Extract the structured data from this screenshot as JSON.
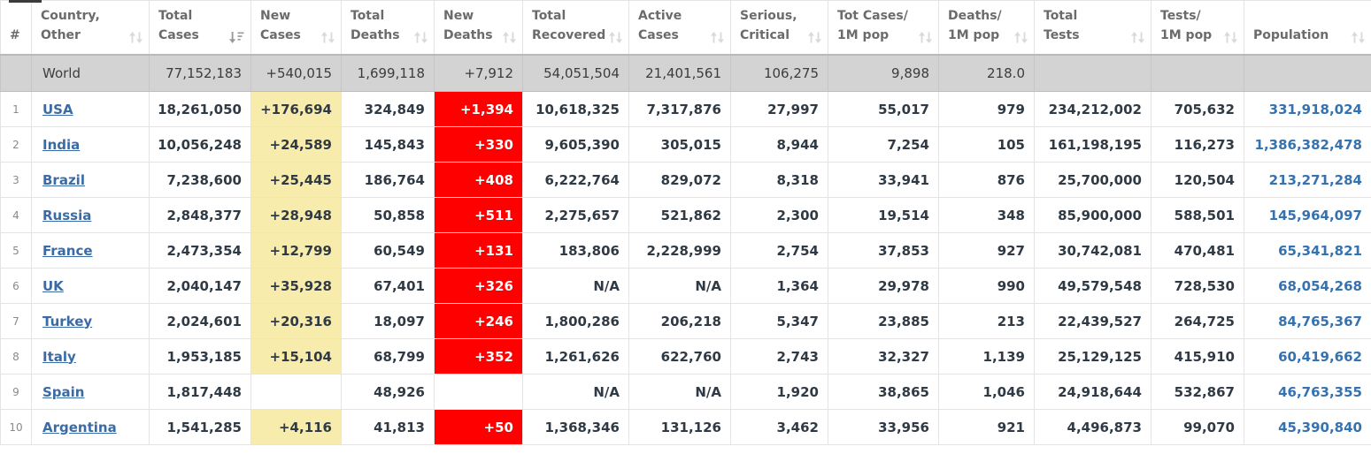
{
  "colors": {
    "new_cases_yellow": "#f8ecac",
    "new_deaths_red": "#ff0000",
    "country_link_blue": "#3b6ba5",
    "population_blue": "#3572b0",
    "world_row_gray": "#d3d3d3",
    "header_text_gray": "#6b6b6b"
  },
  "table": {
    "columns": [
      {
        "key": "rank",
        "label": "#",
        "sort": "none"
      },
      {
        "key": "country",
        "label": "Country,\nOther",
        "sort": "inactive"
      },
      {
        "key": "total_cases",
        "label": "Total\nCases",
        "sort": "desc"
      },
      {
        "key": "new_cases",
        "label": "New\nCases",
        "sort": "inactive"
      },
      {
        "key": "total_deaths",
        "label": "Total\nDeaths",
        "sort": "inactive"
      },
      {
        "key": "new_deaths",
        "label": "New\nDeaths",
        "sort": "inactive"
      },
      {
        "key": "total_recovered",
        "label": "Total\nRecovered",
        "sort": "inactive"
      },
      {
        "key": "active_cases",
        "label": "Active\nCases",
        "sort": "inactive"
      },
      {
        "key": "serious_critical",
        "label": "Serious,\nCritical",
        "sort": "inactive"
      },
      {
        "key": "cases_per_1m",
        "label": "Tot Cases/\n1M pop",
        "sort": "inactive"
      },
      {
        "key": "deaths_per_1m",
        "label": "Deaths/\n1M pop",
        "sort": "inactive"
      },
      {
        "key": "total_tests",
        "label": "Total\nTests",
        "sort": "inactive"
      },
      {
        "key": "tests_per_1m",
        "label": "Tests/\n1M pop",
        "sort": "inactive"
      },
      {
        "key": "population",
        "label": "Population",
        "sort": "inactive"
      }
    ],
    "rows": [
      {
        "world": true,
        "rank": "",
        "country": "World",
        "total_cases": "77,152,183",
        "new_cases": "+540,015",
        "total_deaths": "1,699,118",
        "new_deaths": "+7,912",
        "total_recovered": "54,051,504",
        "active_cases": "21,401,561",
        "serious_critical": "106,275",
        "cases_per_1m": "9,898",
        "deaths_per_1m": "218.0",
        "total_tests": "",
        "tests_per_1m": "",
        "population": ""
      },
      {
        "world": false,
        "rank": "1",
        "country": "USA",
        "total_cases": "18,261,050",
        "new_cases": "+176,694",
        "total_deaths": "324,849",
        "new_deaths": "+1,394",
        "total_recovered": "10,618,325",
        "active_cases": "7,317,876",
        "serious_critical": "27,997",
        "cases_per_1m": "55,017",
        "deaths_per_1m": "979",
        "total_tests": "234,212,002",
        "tests_per_1m": "705,632",
        "population": "331,918,024"
      },
      {
        "world": false,
        "rank": "2",
        "country": "India",
        "total_cases": "10,056,248",
        "new_cases": "+24,589",
        "total_deaths": "145,843",
        "new_deaths": "+330",
        "total_recovered": "9,605,390",
        "active_cases": "305,015",
        "serious_critical": "8,944",
        "cases_per_1m": "7,254",
        "deaths_per_1m": "105",
        "total_tests": "161,198,195",
        "tests_per_1m": "116,273",
        "population": "1,386,382,478"
      },
      {
        "world": false,
        "rank": "3",
        "country": "Brazil",
        "total_cases": "7,238,600",
        "new_cases": "+25,445",
        "total_deaths": "186,764",
        "new_deaths": "+408",
        "total_recovered": "6,222,764",
        "active_cases": "829,072",
        "serious_critical": "8,318",
        "cases_per_1m": "33,941",
        "deaths_per_1m": "876",
        "total_tests": "25,700,000",
        "tests_per_1m": "120,504",
        "population": "213,271,284"
      },
      {
        "world": false,
        "rank": "4",
        "country": "Russia",
        "total_cases": "2,848,377",
        "new_cases": "+28,948",
        "total_deaths": "50,858",
        "new_deaths": "+511",
        "total_recovered": "2,275,657",
        "active_cases": "521,862",
        "serious_critical": "2,300",
        "cases_per_1m": "19,514",
        "deaths_per_1m": "348",
        "total_tests": "85,900,000",
        "tests_per_1m": "588,501",
        "population": "145,964,097"
      },
      {
        "world": false,
        "rank": "5",
        "country": "France",
        "total_cases": "2,473,354",
        "new_cases": "+12,799",
        "total_deaths": "60,549",
        "new_deaths": "+131",
        "total_recovered": "183,806",
        "active_cases": "2,228,999",
        "serious_critical": "2,754",
        "cases_per_1m": "37,853",
        "deaths_per_1m": "927",
        "total_tests": "30,742,081",
        "tests_per_1m": "470,481",
        "population": "65,341,821"
      },
      {
        "world": false,
        "rank": "6",
        "country": "UK",
        "total_cases": "2,040,147",
        "new_cases": "+35,928",
        "total_deaths": "67,401",
        "new_deaths": "+326",
        "total_recovered": "N/A",
        "active_cases": "N/A",
        "serious_critical": "1,364",
        "cases_per_1m": "29,978",
        "deaths_per_1m": "990",
        "total_tests": "49,579,548",
        "tests_per_1m": "728,530",
        "population": "68,054,268"
      },
      {
        "world": false,
        "rank": "7",
        "country": "Turkey",
        "total_cases": "2,024,601",
        "new_cases": "+20,316",
        "total_deaths": "18,097",
        "new_deaths": "+246",
        "total_recovered": "1,800,286",
        "active_cases": "206,218",
        "serious_critical": "5,347",
        "cases_per_1m": "23,885",
        "deaths_per_1m": "213",
        "total_tests": "22,439,527",
        "tests_per_1m": "264,725",
        "population": "84,765,367"
      },
      {
        "world": false,
        "rank": "8",
        "country": "Italy",
        "total_cases": "1,953,185",
        "new_cases": "+15,104",
        "total_deaths": "68,799",
        "new_deaths": "+352",
        "total_recovered": "1,261,626",
        "active_cases": "622,760",
        "serious_critical": "2,743",
        "cases_per_1m": "32,327",
        "deaths_per_1m": "1,139",
        "total_tests": "25,129,125",
        "tests_per_1m": "415,910",
        "population": "60,419,662"
      },
      {
        "world": false,
        "rank": "9",
        "country": "Spain",
        "total_cases": "1,817,448",
        "new_cases": "",
        "total_deaths": "48,926",
        "new_deaths": "",
        "total_recovered": "N/A",
        "active_cases": "N/A",
        "serious_critical": "1,920",
        "cases_per_1m": "38,865",
        "deaths_per_1m": "1,046",
        "total_tests": "24,918,644",
        "tests_per_1m": "532,867",
        "population": "46,763,355"
      },
      {
        "world": false,
        "rank": "10",
        "country": "Argentina",
        "total_cases": "1,541,285",
        "new_cases": "+4,116",
        "total_deaths": "41,813",
        "new_deaths": "+50",
        "total_recovered": "1,368,346",
        "active_cases": "131,126",
        "serious_critical": "3,462",
        "cases_per_1m": "33,956",
        "deaths_per_1m": "921",
        "total_tests": "4,496,873",
        "tests_per_1m": "99,070",
        "population": "45,390,840"
      }
    ]
  }
}
